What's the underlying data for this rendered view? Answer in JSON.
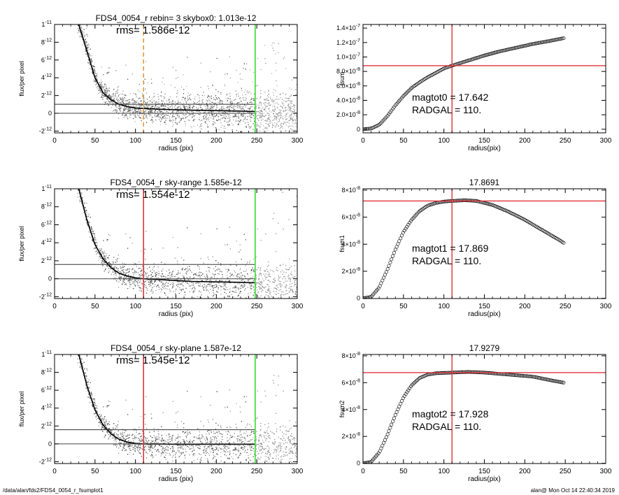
{
  "footer": {
    "path": "/data/alan/fds2/FDS4_0054_r_fsumplot1",
    "stamp": "alan@  Mon Oct 14 22:40:34 2019"
  },
  "colors": {
    "gray": "#9a9a9a",
    "dark": "#111111",
    "red": "#e0323a",
    "green": "#33dd33",
    "orange": "#e8963a"
  },
  "chart_data": [
    {
      "type": "scatter",
      "title": "FDS4_0054_r rebin= 3    skybox0:  1.013e-12",
      "annotation": "rms= 1.586e-12",
      "xlabel": "radius (pix)",
      "ylabel": "flux/per pixel",
      "xlim": [
        0,
        300
      ],
      "ylim": [
        -2.2e-12,
        1e-11
      ],
      "xticks": [
        "0",
        "50",
        "100",
        "150",
        "200",
        "250",
        "300"
      ],
      "yticks": [
        {
          "v": -2e-12,
          "m": "-2",
          "e": "-12"
        },
        {
          "v": 0,
          "m": "0",
          "e": ""
        },
        {
          "v": 2e-12,
          "m": "2",
          "e": "-12"
        },
        {
          "v": 4e-12,
          "m": "4",
          "e": "-12"
        },
        {
          "v": 6e-12,
          "m": "6",
          "e": "-12"
        },
        {
          "v": 8e-12,
          "m": "8",
          "e": "-12"
        },
        {
          "v": 1e-11,
          "m": "1",
          "e": "-11"
        }
      ],
      "hlines": [
        0,
        1.013e-12
      ],
      "vlines": [
        {
          "x": 110,
          "color": "orange",
          "dash": true
        },
        {
          "x": 248,
          "color": "green"
        }
      ],
      "profile": [
        [
          30,
          1e-11
        ],
        [
          40,
          7e-12
        ],
        [
          50,
          4e-12
        ],
        [
          60,
          2.3e-12
        ],
        [
          70,
          1.5e-12
        ],
        [
          80,
          1e-12
        ],
        [
          90,
          7.5e-13
        ],
        [
          100,
          6e-13
        ],
        [
          110,
          5.5e-13
        ],
        [
          130,
          4.5e-13
        ],
        [
          150,
          4e-13
        ],
        [
          170,
          3.5e-13
        ],
        [
          200,
          3e-13
        ],
        [
          230,
          2.5e-13
        ],
        [
          248,
          2e-13
        ]
      ]
    },
    {
      "type": "scatter",
      "title": "FDS4_0054_r sky-range  1.585e-12",
      "annotation": "rms= 1.554e-12",
      "xlabel": "radius (pix)",
      "ylabel": "flux/per pixel",
      "xlim": [
        0,
        300
      ],
      "ylim": [
        -2.2e-12,
        1e-11
      ],
      "xticks": [
        "0",
        "50",
        "100",
        "150",
        "200",
        "250",
        "300"
      ],
      "yticks": [
        {
          "v": -2e-12,
          "m": "-2",
          "e": "-12"
        },
        {
          "v": 0,
          "m": "0",
          "e": ""
        },
        {
          "v": 2e-12,
          "m": "2",
          "e": "-12"
        },
        {
          "v": 4e-12,
          "m": "4",
          "e": "-12"
        },
        {
          "v": 6e-12,
          "m": "6",
          "e": "-12"
        },
        {
          "v": 8e-12,
          "m": "8",
          "e": "-12"
        },
        {
          "v": 1e-11,
          "m": "1",
          "e": "-11"
        }
      ],
      "hlines": [
        0,
        1.585e-12
      ],
      "vlines": [
        {
          "x": 110,
          "color": "red"
        },
        {
          "x": 248,
          "color": "green"
        }
      ],
      "profile": [
        [
          30,
          1e-11
        ],
        [
          40,
          6.5e-12
        ],
        [
          50,
          3.8e-12
        ],
        [
          60,
          2.2e-12
        ],
        [
          70,
          1.2e-12
        ],
        [
          80,
          6e-13
        ],
        [
          90,
          3e-13
        ],
        [
          100,
          1e-13
        ],
        [
          110,
          0
        ],
        [
          130,
          -1e-13
        ],
        [
          150,
          -2e-13
        ],
        [
          170,
          -3e-13
        ],
        [
          200,
          -3.5e-13
        ],
        [
          230,
          -4e-13
        ],
        [
          248,
          -4.5e-13
        ]
      ]
    },
    {
      "type": "scatter",
      "title": "FDS4_0054_r sky-plane  1.587e-12",
      "annotation": "rms= 1.545e-12",
      "xlabel": "radius (pix)",
      "ylabel": "flux/per pixel",
      "xlim": [
        0,
        300
      ],
      "ylim": [
        -2.2e-12,
        1e-11
      ],
      "xticks": [
        "0",
        "50",
        "100",
        "150",
        "200",
        "250",
        "300"
      ],
      "yticks": [
        {
          "v": -2e-12,
          "m": "-2",
          "e": "-12"
        },
        {
          "v": 0,
          "m": "0",
          "e": ""
        },
        {
          "v": 2e-12,
          "m": "2",
          "e": "-12"
        },
        {
          "v": 4e-12,
          "m": "4",
          "e": "-12"
        },
        {
          "v": 6e-12,
          "m": "6",
          "e": "-12"
        },
        {
          "v": 8e-12,
          "m": "8",
          "e": "-12"
        },
        {
          "v": 1e-11,
          "m": "1",
          "e": "-11"
        }
      ],
      "hlines": [
        0,
        1.587e-12
      ],
      "vlines": [
        {
          "x": 110,
          "color": "red"
        },
        {
          "x": 248,
          "color": "green"
        }
      ],
      "profile": [
        [
          30,
          1e-11
        ],
        [
          40,
          6.5e-12
        ],
        [
          50,
          3.8e-12
        ],
        [
          60,
          2.1e-12
        ],
        [
          70,
          1.1e-12
        ],
        [
          80,
          5e-13
        ],
        [
          90,
          2e-13
        ],
        [
          100,
          5e-14
        ],
        [
          110,
          0
        ],
        [
          130,
          -2e-14
        ],
        [
          150,
          -5e-14
        ],
        [
          170,
          -5e-14
        ],
        [
          200,
          -5e-14
        ],
        [
          230,
          -5e-14
        ],
        [
          248,
          -5e-14
        ]
      ]
    },
    {
      "type": "line",
      "title": "",
      "xlabel": "radius(pix)",
      "ylabel": "fsum",
      "xlim": [
        0,
        300
      ],
      "ylim": [
        -5e-09,
        1.45e-07
      ],
      "xticks": [
        "0",
        "50",
        "100",
        "150",
        "200",
        "250",
        "300"
      ],
      "yticks": [
        {
          "v": 0,
          "m": "0",
          "e": ""
        },
        {
          "v": 2e-08,
          "m": "2.0×10",
          "e": "-8"
        },
        {
          "v": 4e-08,
          "m": "4.0×10",
          "e": "-8"
        },
        {
          "v": 6e-08,
          "m": "6.0×10",
          "e": "-8"
        },
        {
          "v": 8e-08,
          "m": "8.0×10",
          "e": "-8"
        },
        {
          "v": 1e-07,
          "m": "1.0×10",
          "e": "-7"
        },
        {
          "v": 1.2e-07,
          "m": "1.2×10",
          "e": "-7"
        },
        {
          "v": 1.4e-07,
          "m": "1.4×10",
          "e": "-7"
        }
      ],
      "ann1": "magtot0 =  17.642",
      "ann2": "RADGAL =    110.",
      "hline": 8.8e-08,
      "vline": 110,
      "curve": [
        [
          0,
          0
        ],
        [
          10,
          1e-09
        ],
        [
          20,
          6e-09
        ],
        [
          30,
          1.8e-08
        ],
        [
          40,
          3.3e-08
        ],
        [
          50,
          4.6e-08
        ],
        [
          60,
          5.7e-08
        ],
        [
          70,
          6.5e-08
        ],
        [
          80,
          7.2e-08
        ],
        [
          90,
          7.8e-08
        ],
        [
          100,
          8.4e-08
        ],
        [
          110,
          8.8e-08
        ],
        [
          130,
          9.5e-08
        ],
        [
          150,
          1.02e-07
        ],
        [
          170,
          1.08e-07
        ],
        [
          190,
          1.13e-07
        ],
        [
          210,
          1.18e-07
        ],
        [
          230,
          1.22e-07
        ],
        [
          248,
          1.26e-07
        ]
      ]
    },
    {
      "type": "line",
      "title": "17.8691",
      "xlabel": "radius(pix)",
      "ylabel": "fsum1",
      "xlim": [
        0,
        300
      ],
      "ylim": [
        -2e-10,
        8.1e-08
      ],
      "xticks": [
        "0",
        "50",
        "100",
        "150",
        "200",
        "250",
        "300"
      ],
      "yticks": [
        {
          "v": 0,
          "m": "0",
          "e": ""
        },
        {
          "v": 2e-08,
          "m": "2×10",
          "e": "-8"
        },
        {
          "v": 4e-08,
          "m": "4×10",
          "e": "-8"
        },
        {
          "v": 6e-08,
          "m": "6×10",
          "e": "-8"
        },
        {
          "v": 8e-08,
          "m": "8×10",
          "e": "-8"
        }
      ],
      "ann1": "magtot1 =  17.869",
      "ann2": "RADGAL =    110.",
      "hline": 7.2e-08,
      "vline": 110,
      "curve": [
        [
          0,
          0
        ],
        [
          10,
          1e-09
        ],
        [
          20,
          8e-09
        ],
        [
          30,
          2.1e-08
        ],
        [
          40,
          3.6e-08
        ],
        [
          50,
          4.9e-08
        ],
        [
          60,
          5.8e-08
        ],
        [
          70,
          6.45e-08
        ],
        [
          80,
          6.85e-08
        ],
        [
          90,
          7.05e-08
        ],
        [
          100,
          7.15e-08
        ],
        [
          110,
          7.2e-08
        ],
        [
          125,
          7.25e-08
        ],
        [
          140,
          7.2e-08
        ],
        [
          160,
          6.9e-08
        ],
        [
          180,
          6.4e-08
        ],
        [
          200,
          5.8e-08
        ],
        [
          220,
          5.1e-08
        ],
        [
          240,
          4.4e-08
        ],
        [
          248,
          4.1e-08
        ]
      ]
    },
    {
      "type": "line",
      "title": "17.9279",
      "xlabel": "radius(pix)",
      "ylabel": "fsum2",
      "xlim": [
        0,
        300
      ],
      "ylim": [
        -2e-10,
        8.1e-08
      ],
      "xticks": [
        "0",
        "50",
        "100",
        "150",
        "200",
        "250",
        "300"
      ],
      "yticks": [
        {
          "v": 0,
          "m": "0",
          "e": ""
        },
        {
          "v": 2e-08,
          "m": "2×10",
          "e": "-8"
        },
        {
          "v": 4e-08,
          "m": "4×10",
          "e": "-8"
        },
        {
          "v": 6e-08,
          "m": "6×10",
          "e": "-8"
        },
        {
          "v": 8e-08,
          "m": "8×10",
          "e": "-8"
        }
      ],
      "ann1": "magtot2 =  17.928",
      "ann2": "RADGAL =    110.",
      "hline": 6.75e-08,
      "vline": 110,
      "curve": [
        [
          0,
          0
        ],
        [
          10,
          1e-09
        ],
        [
          20,
          8e-09
        ],
        [
          30,
          2.1e-08
        ],
        [
          40,
          3.6e-08
        ],
        [
          50,
          4.9e-08
        ],
        [
          60,
          5.8e-08
        ],
        [
          70,
          6.35e-08
        ],
        [
          80,
          6.6e-08
        ],
        [
          90,
          6.7e-08
        ],
        [
          110,
          6.75e-08
        ],
        [
          130,
          6.8e-08
        ],
        [
          150,
          6.75e-08
        ],
        [
          170,
          6.65e-08
        ],
        [
          190,
          6.55e-08
        ],
        [
          210,
          6.45e-08
        ],
        [
          230,
          6.2e-08
        ],
        [
          248,
          6e-08
        ]
      ]
    }
  ]
}
